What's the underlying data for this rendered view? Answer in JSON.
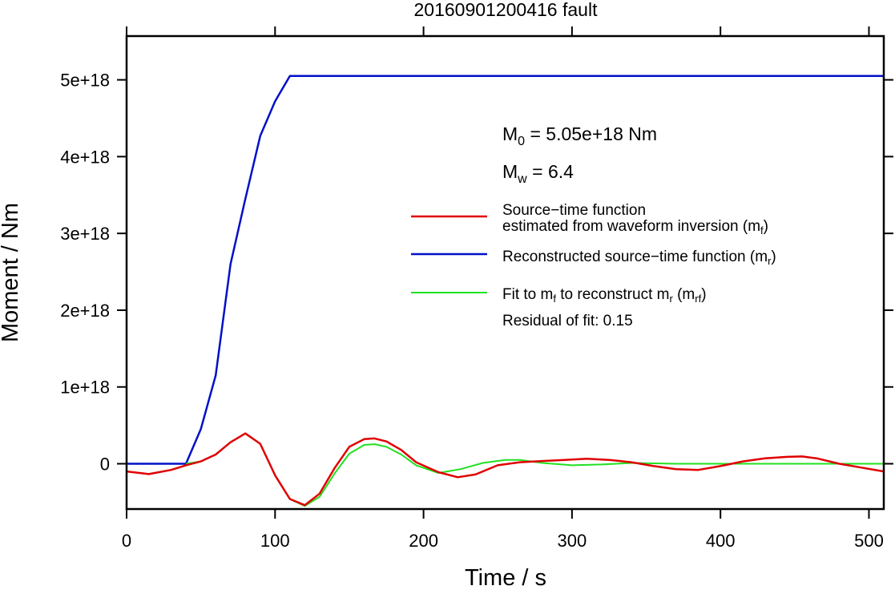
{
  "chart_data": {
    "type": "line",
    "title": "20160901200416 fault",
    "xlabel": "Time / s",
    "ylabel": "Moment / Nm",
    "xlim": [
      0,
      510
    ],
    "ylim": [
      -5.9e+17,
      5.57e+18
    ],
    "xticks": [
      0,
      100,
      200,
      300,
      400,
      500
    ],
    "yticks": [
      0,
      1e+18,
      2e+18,
      3e+18,
      4e+18,
      5e+18
    ],
    "ytick_labels": [
      "0",
      "1e+18",
      "2e+18",
      "3e+18",
      "4e+18",
      "5e+18"
    ],
    "grid": false,
    "annotations": {
      "m0": {
        "base": "M",
        "sub": "0",
        "rest": " = 5.05e+18 Nm"
      },
      "mw": {
        "base": "M",
        "sub": "w",
        "rest": " = 6.4"
      },
      "residual": "Residual of fit: 0.15"
    },
    "legend": {
      "placement": "right",
      "entries": [
        {
          "line1": "Source−time function",
          "line2": "estimated from waveform inversion (m",
          "sub": "f",
          "tail": ")",
          "color": "#e00000"
        },
        {
          "line1": "Reconstructed source−time function (m",
          "sub": "r",
          "tail": ")",
          "color": "#0010c8"
        },
        {
          "pre": "Fit to m",
          "sub1": "f",
          "mid": " to reconstruct m",
          "sub2": "r",
          "post": " (m",
          "sub3": "rf",
          "tail": ")",
          "color": "#22e022"
        }
      ]
    },
    "series": [
      {
        "color": "#0010c8",
        "x": [
          0,
          40,
          50,
          60,
          70,
          80,
          90,
          100,
          110,
          510
        ],
        "y": [
          0,
          0,
          4.5e+17,
          1.15e+18,
          2.6e+18,
          3.45e+18,
          4.27e+18,
          4.72e+18,
          5.05e+18,
          5.05e+18
        ]
      },
      {
        "color": "#e00000",
        "x": [
          0,
          15,
          30,
          40,
          50,
          60,
          70,
          80,
          90,
          100,
          110,
          120,
          130,
          140,
          150,
          160,
          167,
          175,
          185,
          195,
          210,
          223,
          235,
          250,
          265,
          280,
          295,
          310,
          325,
          340,
          355,
          370,
          385,
          400,
          415,
          430,
          445,
          455,
          465,
          480,
          495,
          510
        ],
        "y": [
          -1e+17,
          -1.35e+17,
          -8e+16,
          -2e+16,
          3e+16,
          1.2e+17,
          2.8e+17,
          3.95e+17,
          2.6e+17,
          -1.5e+17,
          -4.6e+17,
          -5.4e+17,
          -3.9e+17,
          -6e+16,
          2.2e+17,
          3.2e+17,
          3.3e+17,
          2.9e+17,
          1.8e+17,
          2e+16,
          -1.1e+17,
          -1.75e+17,
          -1.4e+17,
          -2e+16,
          2e+16,
          3.5e+16,
          5e+16,
          6.5e+16,
          5e+16,
          2e+16,
          -3e+16,
          -7e+16,
          -8e+16,
          -3e+16,
          3e+16,
          7e+16,
          9e+16,
          9.5e+16,
          7e+16,
          0,
          -5e+16,
          -1e+17
        ]
      },
      {
        "color": "#22e022",
        "x": [
          0,
          30,
          40,
          50,
          60,
          70,
          80,
          90,
          100,
          110,
          120,
          130,
          140,
          150,
          160,
          167,
          175,
          185,
          195,
          210,
          225,
          240,
          255,
          265,
          280,
          300,
          320,
          340,
          370,
          400,
          450,
          510
        ],
        "y": [
          null,
          null,
          0,
          3e+16,
          1.2e+17,
          2.8e+17,
          3.95e+17,
          2.6e+17,
          -1.5e+17,
          -4.6e+17,
          -5.5e+17,
          -4.3e+17,
          -1.3e+17,
          1.3e+17,
          2.45e+17,
          2.55e+17,
          2.2e+17,
          1.2e+17,
          -2e+16,
          -1.2e+17,
          -7e+16,
          1e+16,
          5e+16,
          5e+16,
          1e+16,
          -2e+16,
          -1e+16,
          1e+16,
          0,
          0,
          0,
          0
        ]
      }
    ]
  }
}
